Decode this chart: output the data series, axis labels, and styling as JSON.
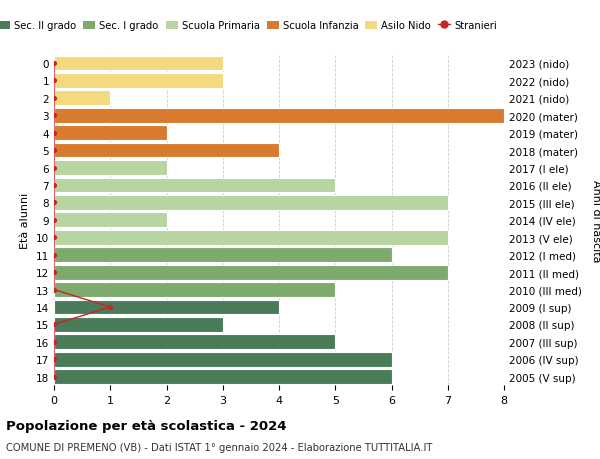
{
  "ages": [
    18,
    17,
    16,
    15,
    14,
    13,
    12,
    11,
    10,
    9,
    8,
    7,
    6,
    5,
    4,
    3,
    2,
    1,
    0
  ],
  "years": [
    "2005 (V sup)",
    "2006 (IV sup)",
    "2007 (III sup)",
    "2008 (II sup)",
    "2009 (I sup)",
    "2010 (III med)",
    "2011 (II med)",
    "2012 (I med)",
    "2013 (V ele)",
    "2014 (IV ele)",
    "2015 (III ele)",
    "2016 (II ele)",
    "2017 (I ele)",
    "2018 (mater)",
    "2019 (mater)",
    "2020 (mater)",
    "2021 (nido)",
    "2022 (nido)",
    "2023 (nido)"
  ],
  "bar_values": [
    6,
    6,
    5,
    3,
    4,
    5,
    7,
    6,
    7,
    2,
    7,
    5,
    2,
    4,
    2,
    8,
    1,
    3,
    3
  ],
  "bar_colors": [
    "#4a7c59",
    "#4a7c59",
    "#4a7c59",
    "#4a7c59",
    "#4a7c59",
    "#7dab6e",
    "#7dab6e",
    "#7dab6e",
    "#b8d4a0",
    "#b8d4a0",
    "#b8d4a0",
    "#b8d4a0",
    "#b8d4a0",
    "#d97b2e",
    "#d97b2e",
    "#d97b2e",
    "#f5d97e",
    "#f5d97e",
    "#f5d97e"
  ],
  "stranieri_values": [
    0,
    0,
    0,
    0,
    1,
    0,
    0,
    0,
    0,
    0,
    0,
    0,
    0,
    0,
    0,
    0,
    0,
    0,
    0
  ],
  "stranieri_color": "#cc2222",
  "legend_labels": [
    "Sec. II grado",
    "Sec. I grado",
    "Scuola Primaria",
    "Scuola Infanzia",
    "Asilo Nido",
    "Stranieri"
  ],
  "legend_colors": [
    "#4a7c59",
    "#7dab6e",
    "#b8d4a0",
    "#d97b2e",
    "#f5d97e",
    "#cc2222"
  ],
  "ylabel_left": "Età alunni",
  "ylabel_right": "Anni di nascita",
  "title_bold": "Popolazione per età scolastica - 2024",
  "subtitle": "COMUNE DI PREMENO (VB) - Dati ISTAT 1° gennaio 2024 - Elaborazione TUTTITALIA.IT",
  "xlim": [
    0,
    8
  ],
  "xticks": [
    0,
    1,
    2,
    3,
    4,
    5,
    6,
    7,
    8
  ],
  "background_color": "#ffffff",
  "bar_edge_color": "#ffffff",
  "grid_color": "#cccccc"
}
